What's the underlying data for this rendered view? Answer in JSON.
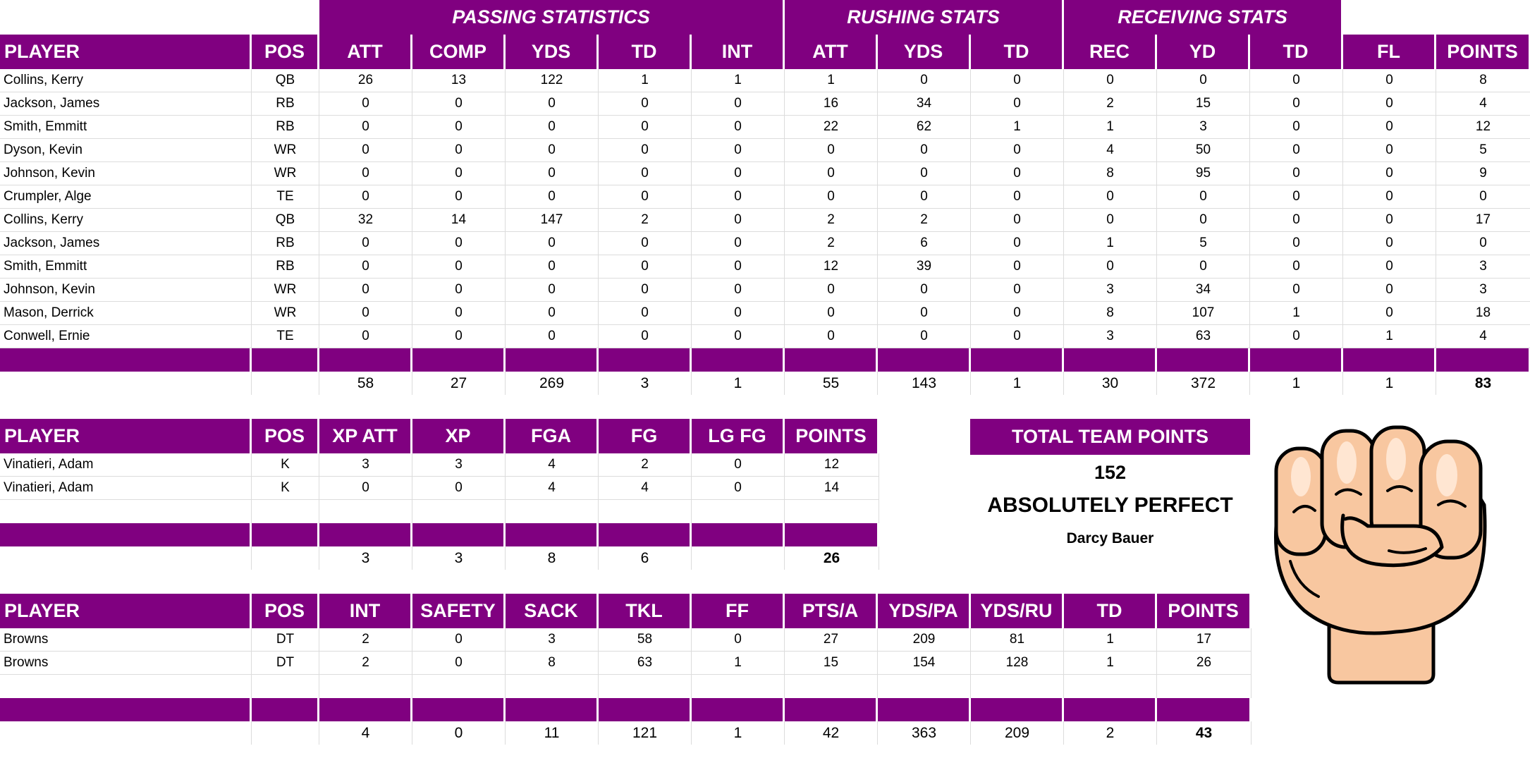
{
  "offense": {
    "group_headers": {
      "passing": "PASSING STATISTICS",
      "rushing": "RUSHING STATS",
      "receiving": "RECEIVING STATS"
    },
    "columns": [
      "PLAYER",
      "POS",
      "ATT",
      "COMP",
      "YDS",
      "TD",
      "INT",
      "ATT",
      "YDS",
      "TD",
      "REC",
      "YD",
      "TD",
      "FL",
      "POINTS"
    ],
    "rows": [
      [
        "Collins, Kerry",
        "QB",
        "26",
        "13",
        "122",
        "1",
        "1",
        "1",
        "0",
        "0",
        "0",
        "0",
        "0",
        "0",
        "8"
      ],
      [
        "Jackson, James",
        "RB",
        "0",
        "0",
        "0",
        "0",
        "0",
        "16",
        "34",
        "0",
        "2",
        "15",
        "0",
        "0",
        "4"
      ],
      [
        "Smith, Emmitt",
        "RB",
        "0",
        "0",
        "0",
        "0",
        "0",
        "22",
        "62",
        "1",
        "1",
        "3",
        "0",
        "0",
        "12"
      ],
      [
        "Dyson, Kevin",
        "WR",
        "0",
        "0",
        "0",
        "0",
        "0",
        "0",
        "0",
        "0",
        "4",
        "50",
        "0",
        "0",
        "5"
      ],
      [
        "Johnson, Kevin",
        "WR",
        "0",
        "0",
        "0",
        "0",
        "0",
        "0",
        "0",
        "0",
        "8",
        "95",
        "0",
        "0",
        "9"
      ],
      [
        "Crumpler, Alge",
        "TE",
        "0",
        "0",
        "0",
        "0",
        "0",
        "0",
        "0",
        "0",
        "0",
        "0",
        "0",
        "0",
        "0"
      ],
      [
        "Collins, Kerry",
        "QB",
        "32",
        "14",
        "147",
        "2",
        "0",
        "2",
        "2",
        "0",
        "0",
        "0",
        "0",
        "0",
        "17"
      ],
      [
        "Jackson, James",
        "RB",
        "0",
        "0",
        "0",
        "0",
        "0",
        "2",
        "6",
        "0",
        "1",
        "5",
        "0",
        "0",
        "0"
      ],
      [
        "Smith, Emmitt",
        "RB",
        "0",
        "0",
        "0",
        "0",
        "0",
        "12",
        "39",
        "0",
        "0",
        "0",
        "0",
        "0",
        "3"
      ],
      [
        "Johnson, Kevin",
        "WR",
        "0",
        "0",
        "0",
        "0",
        "0",
        "0",
        "0",
        "0",
        "3",
        "34",
        "0",
        "0",
        "3"
      ],
      [
        "Mason, Derrick",
        "WR",
        "0",
        "0",
        "0",
        "0",
        "0",
        "0",
        "0",
        "0",
        "8",
        "107",
        "1",
        "0",
        "18"
      ],
      [
        "Conwell, Ernie",
        "TE",
        "0",
        "0",
        "0",
        "0",
        "0",
        "0",
        "0",
        "0",
        "3",
        "63",
        "0",
        "1",
        "4"
      ]
    ],
    "totals": [
      "",
      "",
      "58",
      "27",
      "269",
      "3",
      "1",
      "55",
      "143",
      "1",
      "30",
      "372",
      "1",
      "1",
      "83"
    ]
  },
  "kicking": {
    "columns": [
      "PLAYER",
      "POS",
      "XP ATT",
      "XP",
      "FGA",
      "FG",
      "LG FG",
      "POINTS"
    ],
    "rows": [
      [
        "Vinatieri, Adam",
        "K",
        "3",
        "3",
        "4",
        "2",
        "0",
        "12"
      ],
      [
        "Vinatieri, Adam",
        "K",
        "0",
        "0",
        "4",
        "4",
        "0",
        "14"
      ]
    ],
    "totals": [
      "",
      "",
      "3",
      "3",
      "8",
      "6",
      "",
      "26"
    ]
  },
  "defense": {
    "columns": [
      "PLAYER",
      "POS",
      "INT",
      "SAFETY",
      "SACK",
      "TKL",
      "FF",
      "PTS/A",
      "YDS/PA",
      "YDS/RU",
      "TD",
      "POINTS"
    ],
    "rows": [
      [
        "Browns",
        "DT",
        "2",
        "0",
        "3",
        "58",
        "0",
        "27",
        "209",
        "81",
        "1",
        "17"
      ],
      [
        "Browns",
        "DT",
        "2",
        "0",
        "8",
        "63",
        "1",
        "15",
        "154",
        "128",
        "1",
        "26"
      ]
    ],
    "totals": [
      "",
      "",
      "4",
      "0",
      "11",
      "121",
      "1",
      "42",
      "363",
      "209",
      "2",
      "43"
    ]
  },
  "team": {
    "title": "TOTAL TEAM POINTS",
    "total": "152",
    "verdict": "ABSOLUTELY PERFECT",
    "owner": "Darcy Bauer"
  },
  "colors": {
    "header_bg": "#800080",
    "header_text": "#ffffff",
    "grid": "#dcdcdc"
  },
  "icons": {
    "fist": "fist-icon"
  }
}
